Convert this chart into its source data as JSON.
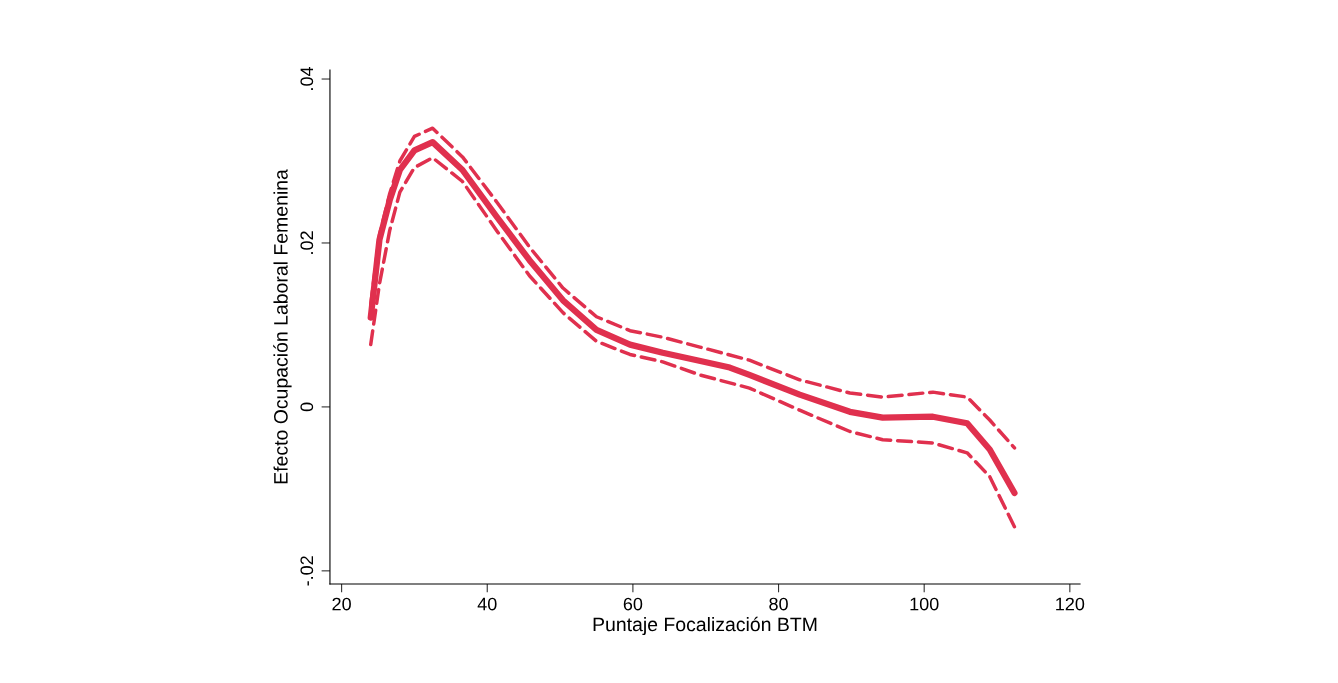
{
  "chart_data": {
    "type": "line",
    "xlabel": "Puntaje Focalización BTM",
    "ylabel": "Efecto Ocupación Laboral Femenina",
    "xlim": [
      18.4,
      121.4
    ],
    "xticks": [
      20,
      40,
      60,
      80,
      100,
      120
    ],
    "ylim": [
      -0.0216,
      0.0411
    ],
    "yticks": [
      {
        "value": -0.02,
        "label": "-.02"
      },
      0,
      {
        "value": 0.02,
        "label": ".02"
      },
      {
        "value": 0.04,
        "label": ".04"
      }
    ],
    "grid": false,
    "series": [
      {
        "color": "#e0304e",
        "line_style": "solid",
        "x": [
          24,
          25.2,
          26.6,
          28,
          30,
          32.5,
          36.6,
          41.3,
          45.8,
          50.4,
          55,
          59.6,
          64.1,
          68.8,
          73.3,
          76,
          82.9,
          89.8,
          94.3,
          101.2,
          105.9,
          109,
          112.4
        ],
        "values": [
          0.0109,
          0.0204,
          0.0252,
          0.0289,
          0.0313,
          0.0323,
          0.0289,
          0.0232,
          0.0179,
          0.013,
          0.0094,
          0.0076,
          0.0066,
          0.0057,
          0.0048,
          0.0039,
          0.0015,
          -0.0006,
          -0.0013,
          -0.0012,
          -0.002,
          -0.0052,
          -0.0105
        ]
      },
      {
        "color": "#e0304e",
        "line_style": "dashed",
        "x": [
          24,
          25.2,
          26.6,
          28,
          30,
          32.5,
          36.6,
          41.3,
          45.8,
          50.4,
          55,
          59.6,
          64.1,
          69.2,
          76,
          82.9,
          89.8,
          94.3,
          101.2,
          105.9,
          109,
          112.4
        ],
        "values": [
          0.0125,
          0.021,
          0.026,
          0.03,
          0.033,
          0.034,
          0.0305,
          0.025,
          0.0195,
          0.0145,
          0.011,
          0.0093,
          0.0085,
          0.0073,
          0.0057,
          0.0033,
          0.0017,
          0.0012,
          0.0018,
          0.0012,
          -0.0016,
          -0.005
        ]
      },
      {
        "color": "#e0304e",
        "line_style": "dashed",
        "x": [
          24,
          25.2,
          26.6,
          28,
          30,
          32.5,
          36.6,
          41.3,
          45.8,
          50.4,
          55,
          59.6,
          64.1,
          69.2,
          76,
          82.9,
          89.8,
          94.3,
          101.2,
          105.9,
          109,
          112.6
        ],
        "values": [
          0.0076,
          0.015,
          0.0215,
          0.0262,
          0.0292,
          0.0304,
          0.0275,
          0.0215,
          0.016,
          0.0115,
          0.008,
          0.0064,
          0.0055,
          0.0039,
          0.0023,
          -0.0004,
          -0.003,
          -0.004,
          -0.0044,
          -0.0056,
          -0.0085,
          -0.015
        ]
      }
    ]
  }
}
